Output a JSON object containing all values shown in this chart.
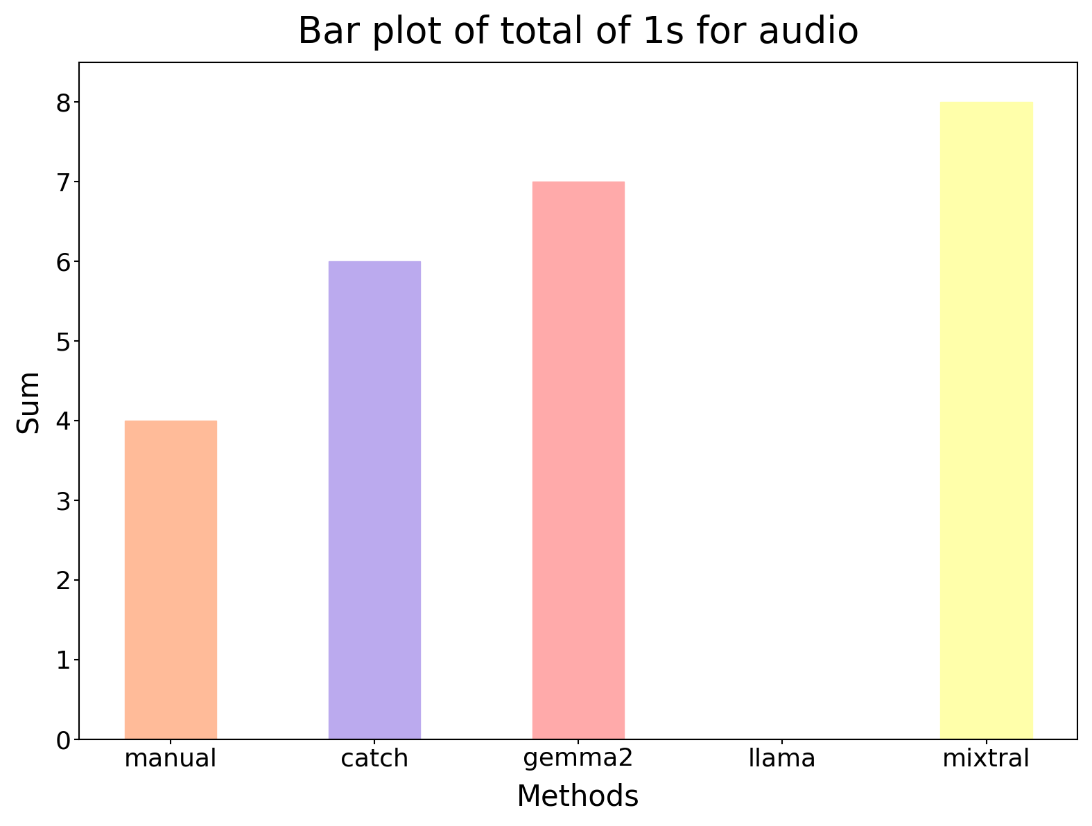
{
  "title": "Bar plot of total of 1s for audio",
  "xlabel": "Methods",
  "ylabel": "Sum",
  "categories": [
    "manual",
    "catch",
    "gemma2",
    "llama",
    "mixtral"
  ],
  "values": [
    4,
    6,
    7,
    0,
    8
  ],
  "bar_colors": [
    "#FFBB99",
    "#BBAAEE",
    "#FFAAAA",
    "#FFFFFF",
    "#FFFFAA"
  ],
  "bar_edgecolors": [
    "#FFBB99",
    "#BBAAEE",
    "#FFAAAA",
    "#FFFFFF",
    "#FFFFAA"
  ],
  "ylim": [
    0,
    8.5
  ],
  "yticks": [
    0,
    1,
    2,
    3,
    4,
    5,
    6,
    7,
    8
  ],
  "title_fontsize": 38,
  "axis_label_fontsize": 30,
  "tick_fontsize": 26,
  "background_color": "#FFFFFF",
  "bar_width": 0.45,
  "figsize": [
    15.75,
    11.92
  ],
  "dpi": 100,
  "spine_linewidth": 1.5
}
